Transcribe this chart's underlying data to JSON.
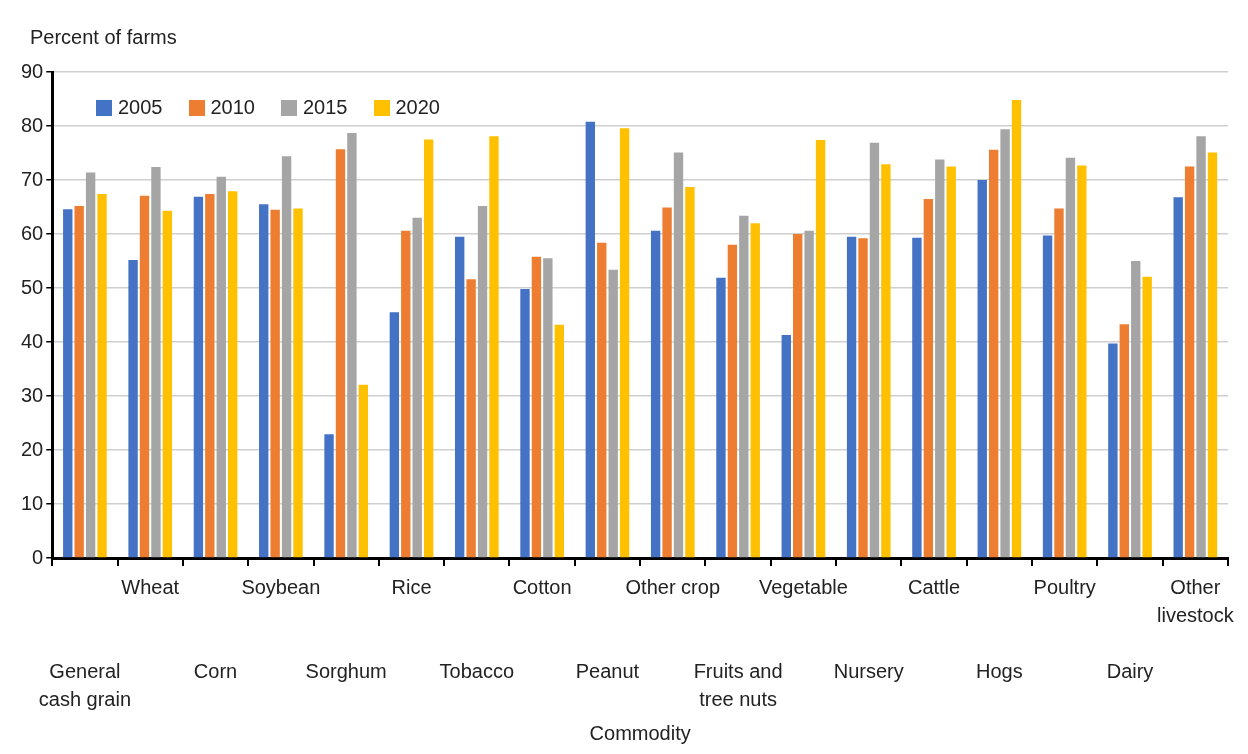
{
  "chart_data": {
    "type": "bar",
    "ylabel": "Percent of farms",
    "xlabel": "Commodity",
    "categories": [
      "General cash grain",
      "Wheat",
      "Corn",
      "Soybean",
      "Sorghum",
      "Rice",
      "Tobacco",
      "Cotton",
      "Peanut",
      "Other crop",
      "Fruits and tree nuts",
      "Vegetable",
      "Nursery",
      "Cattle",
      "Hogs",
      "Poultry",
      "Dairy",
      "Other livestock"
    ],
    "series": [
      {
        "name": "2005",
        "color": "#4472c4",
        "values": [
          64.6,
          55.2,
          66.9,
          65.5,
          22.9,
          45.5,
          59.5,
          49.8,
          80.8,
          60.6,
          51.9,
          41.3,
          59.5,
          59.3,
          70.0,
          59.7,
          39.7,
          66.8
        ]
      },
      {
        "name": "2010",
        "color": "#ed7d31",
        "values": [
          65.2,
          67.1,
          67.4,
          64.5,
          75.7,
          60.6,
          51.6,
          55.8,
          58.4,
          64.9,
          58.0,
          60.0,
          59.2,
          66.5,
          75.6,
          64.7,
          43.3,
          72.5
        ]
      },
      {
        "name": "2015",
        "color": "#a5a5a5",
        "values": [
          71.4,
          72.4,
          70.6,
          74.4,
          78.7,
          63.0,
          65.2,
          55.5,
          53.4,
          75.1,
          63.4,
          60.6,
          76.9,
          73.8,
          79.4,
          74.1,
          55.0,
          78.1
        ]
      },
      {
        "name": "2020",
        "color": "#ffc000",
        "values": [
          67.4,
          64.3,
          67.9,
          64.7,
          32.1,
          77.5,
          78.1,
          43.2,
          79.6,
          68.7,
          62.0,
          77.4,
          72.9,
          72.5,
          84.8,
          72.7,
          52.1,
          75.1
        ]
      }
    ],
    "ylim": [
      0,
      90
    ],
    "yticks": [
      0,
      10,
      20,
      30,
      40,
      50,
      60,
      70,
      80,
      90
    ],
    "grid": "y",
    "legend": "top left"
  }
}
